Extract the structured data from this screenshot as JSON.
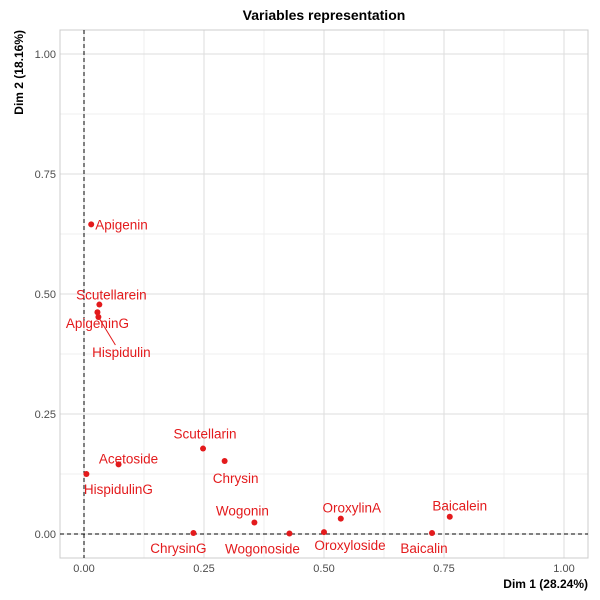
{
  "chart_data": {
    "type": "scatter",
    "title": "Variables representation",
    "xlabel": "Dim 1 (28.24%)",
    "ylabel": "Dim 2 (18.16%)",
    "xlim": [
      -0.05,
      1.05
    ],
    "ylim": [
      -0.05,
      1.05
    ],
    "x_ticks": [
      "0.00",
      "0.25",
      "0.50",
      "0.75",
      "1.00"
    ],
    "y_ticks": [
      "0.00",
      "0.25",
      "0.50",
      "0.75",
      "1.00"
    ],
    "grid": true,
    "reference_lines": {
      "x": 0,
      "y": 0,
      "style": "dashed"
    },
    "point_color": "#e31a1c",
    "points": [
      {
        "label": "Apigenin",
        "x": 0.015,
        "y": 0.645
      },
      {
        "label": "Scutellarein",
        "x": 0.032,
        "y": 0.478
      },
      {
        "label": "ApigeninG",
        "x": 0.028,
        "y": 0.462
      },
      {
        "label": "Hispidulin",
        "x": 0.03,
        "y": 0.452
      },
      {
        "label": "Scutellarin",
        "x": 0.248,
        "y": 0.178
      },
      {
        "label": "Chrysin",
        "x": 0.293,
        "y": 0.152
      },
      {
        "label": "Acetoside",
        "x": 0.072,
        "y": 0.145
      },
      {
        "label": "HispidulinG",
        "x": 0.005,
        "y": 0.125
      },
      {
        "label": "Wogonin",
        "x": 0.355,
        "y": 0.024
      },
      {
        "label": "OroxylinA",
        "x": 0.535,
        "y": 0.032
      },
      {
        "label": "Baicalein",
        "x": 0.762,
        "y": 0.036
      },
      {
        "label": "ChrysinG",
        "x": 0.228,
        "y": 0.002
      },
      {
        "label": "Wogonoside",
        "x": 0.428,
        "y": 0.001
      },
      {
        "label": "Oroxyloside",
        "x": 0.5,
        "y": 0.004
      },
      {
        "label": "Baicalin",
        "x": 0.725,
        "y": 0.002
      }
    ]
  }
}
